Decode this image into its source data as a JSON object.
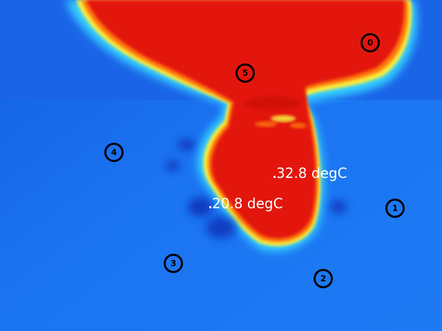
{
  "image": {
    "kind": "thermal-camera-frame",
    "palette": [
      "#0b3fd0",
      "#1e7cf5",
      "#35c8ff",
      "#6cf7c8",
      "#f6f240",
      "#ff8a10",
      "#e82108",
      "#c81004"
    ]
  },
  "markers": [
    {
      "id": "0"
    },
    {
      "id": "1"
    },
    {
      "id": "2"
    },
    {
      "id": "3"
    },
    {
      "id": "4"
    },
    {
      "id": "5"
    }
  ],
  "readings": [
    {
      "text": "32.8 degC"
    },
    {
      "text": "20.8 degC"
    }
  ]
}
